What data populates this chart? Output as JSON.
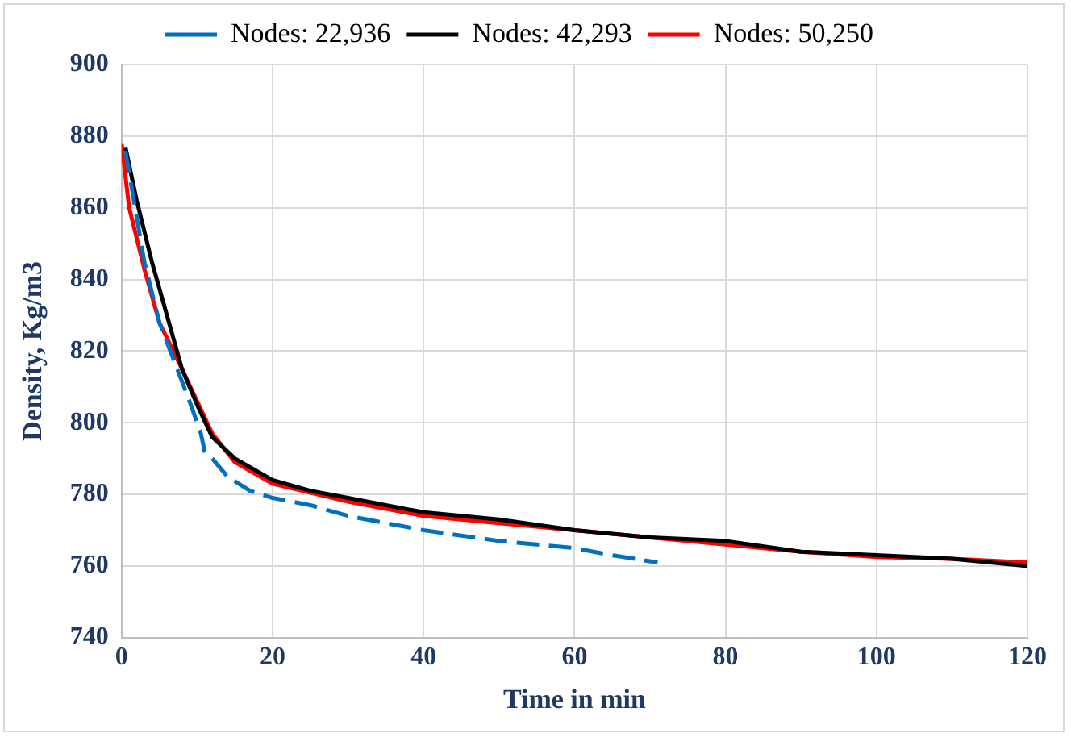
{
  "chart_data": {
    "type": "line",
    "xlabel": "Time in min",
    "ylabel": "Density, Kg/m3",
    "xlim": [
      0,
      120
    ],
    "xticks": [
      0,
      20,
      40,
      60,
      80,
      100,
      120
    ],
    "ylim": [
      740,
      900
    ],
    "yticks": [
      740,
      760,
      780,
      800,
      820,
      840,
      860,
      880,
      900
    ],
    "grid": true,
    "legend": "top",
    "marker": "none",
    "series": [
      {
        "name": "Nodes: 22,936",
        "color": "#0070c0",
        "line_style": "dashed",
        "x": [
          0.5,
          3,
          5,
          7,
          9,
          10.5,
          11,
          12,
          14,
          17,
          20,
          25,
          30,
          40,
          50,
          60,
          65,
          71
        ],
        "values": [
          876,
          845,
          828,
          817,
          806,
          797,
          792,
          790,
          785,
          781,
          779,
          777,
          774,
          770,
          767,
          765,
          763,
          761
        ]
      },
      {
        "name": "Nodes: 42,293",
        "color": "#000000",
        "line_style": "solid",
        "x": [
          0.5,
          2,
          4,
          6,
          8,
          10,
          12,
          15,
          20,
          25,
          30,
          40,
          50,
          60,
          70,
          80,
          90,
          100,
          110,
          120
        ],
        "values": [
          877,
          862,
          845,
          830,
          815,
          805,
          796,
          790,
          784,
          781,
          779,
          775,
          773,
          770,
          768,
          767,
          764,
          763,
          762,
          760
        ]
      },
      {
        "name": "Nodes: 50,250",
        "color": "#ff0000",
        "line_style": "solid",
        "x": [
          0,
          1,
          3,
          5,
          8,
          10,
          12,
          15,
          20,
          30,
          40,
          50,
          60,
          70,
          80,
          90,
          100,
          110,
          120
        ],
        "values": [
          878,
          860,
          843,
          828,
          815,
          806,
          797,
          789,
          783,
          778,
          774,
          772,
          770,
          768,
          766,
          764,
          762.5,
          762,
          761
        ]
      }
    ]
  }
}
